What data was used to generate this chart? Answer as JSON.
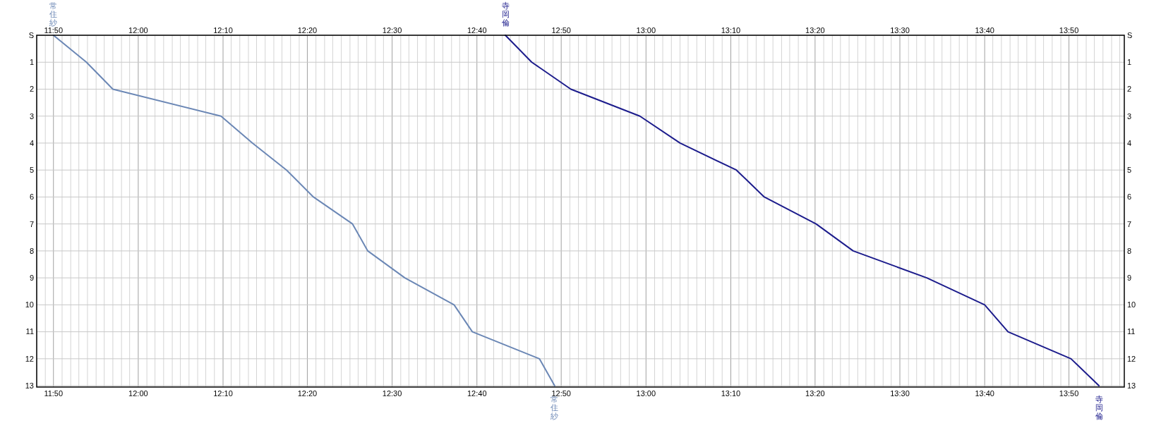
{
  "chart_data": {
    "type": "line",
    "xlim": [
      11.8,
      13.942
    ],
    "ylim": [
      13.05,
      0
    ],
    "y2lim": [
      13.05,
      0
    ],
    "x2lim": [
      11.8,
      13.942
    ],
    "grid": true,
    "marker": "none",
    "line_style": "solid",
    "xticks": [
      {
        "value": 11.8,
        "label": null
      },
      {
        "value": 11.817,
        "label": null
      },
      {
        "value": 11.833,
        "label": "11:50"
      },
      {
        "value": 11.85,
        "label": null
      },
      {
        "value": 11.867,
        "label": null
      },
      {
        "value": 11.883,
        "label": null
      },
      {
        "value": 11.9,
        "label": null
      },
      {
        "value": 11.917,
        "label": null
      },
      {
        "value": 11.933,
        "label": null
      },
      {
        "value": 11.95,
        "label": null
      },
      {
        "value": 11.967,
        "label": null
      },
      {
        "value": 11.983,
        "label": null
      },
      {
        "value": 12,
        "label": "12:00"
      },
      {
        "value": 12.017,
        "label": null
      },
      {
        "value": 12.033,
        "label": null
      },
      {
        "value": 12.05,
        "label": null
      },
      {
        "value": 12.067,
        "label": null
      },
      {
        "value": 12.083,
        "label": null
      },
      {
        "value": 12.1,
        "label": null
      },
      {
        "value": 12.117,
        "label": null
      },
      {
        "value": 12.133,
        "label": null
      },
      {
        "value": 12.15,
        "label": null
      },
      {
        "value": 12.167,
        "label": "12:10"
      },
      {
        "value": 12.183,
        "label": null
      },
      {
        "value": 12.2,
        "label": null
      },
      {
        "value": 12.217,
        "label": null
      },
      {
        "value": 12.233,
        "label": null
      },
      {
        "value": 12.25,
        "label": null
      },
      {
        "value": 12.267,
        "label": null
      },
      {
        "value": 12.283,
        "label": null
      },
      {
        "value": 12.3,
        "label": null
      },
      {
        "value": 12.317,
        "label": null
      },
      {
        "value": 12.333,
        "label": "12:20"
      },
      {
        "value": 12.35,
        "label": null
      },
      {
        "value": 12.367,
        "label": null
      },
      {
        "value": 12.383,
        "label": null
      },
      {
        "value": 12.4,
        "label": null
      },
      {
        "value": 12.417,
        "label": null
      },
      {
        "value": 12.433,
        "label": null
      },
      {
        "value": 12.45,
        "label": null
      },
      {
        "value": 12.467,
        "label": null
      },
      {
        "value": 12.483,
        "label": null
      },
      {
        "value": 12.5,
        "label": "12:30"
      },
      {
        "value": 12.517,
        "label": null
      },
      {
        "value": 12.533,
        "label": null
      },
      {
        "value": 12.55,
        "label": null
      },
      {
        "value": 12.567,
        "label": null
      },
      {
        "value": 12.583,
        "label": null
      },
      {
        "value": 12.6,
        "label": null
      },
      {
        "value": 12.617,
        "label": null
      },
      {
        "value": 12.633,
        "label": null
      },
      {
        "value": 12.65,
        "label": null
      },
      {
        "value": 12.667,
        "label": "12:40"
      },
      {
        "value": 12.683,
        "label": null
      },
      {
        "value": 12.7,
        "label": null
      },
      {
        "value": 12.717,
        "label": null
      },
      {
        "value": 12.733,
        "label": null
      },
      {
        "value": 12.75,
        "label": null
      },
      {
        "value": 12.767,
        "label": null
      },
      {
        "value": 12.783,
        "label": null
      },
      {
        "value": 12.8,
        "label": null
      },
      {
        "value": 12.817,
        "label": null
      },
      {
        "value": 12.833,
        "label": "12:50"
      },
      {
        "value": 12.85,
        "label": null
      },
      {
        "value": 12.867,
        "label": null
      },
      {
        "value": 12.883,
        "label": null
      },
      {
        "value": 12.9,
        "label": null
      },
      {
        "value": 12.917,
        "label": null
      },
      {
        "value": 12.933,
        "label": null
      },
      {
        "value": 12.95,
        "label": null
      },
      {
        "value": 12.967,
        "label": null
      },
      {
        "value": 12.983,
        "label": null
      },
      {
        "value": 13,
        "label": "13:00"
      },
      {
        "value": 13.017,
        "label": null
      },
      {
        "value": 13.033,
        "label": null
      },
      {
        "value": 13.05,
        "label": null
      },
      {
        "value": 13.067,
        "label": null
      },
      {
        "value": 13.083,
        "label": null
      },
      {
        "value": 13.1,
        "label": null
      },
      {
        "value": 13.117,
        "label": null
      },
      {
        "value": 13.133,
        "label": null
      },
      {
        "value": 13.15,
        "label": null
      },
      {
        "value": 13.167,
        "label": "13:10"
      },
      {
        "value": 13.183,
        "label": null
      },
      {
        "value": 13.2,
        "label": null
      },
      {
        "value": 13.217,
        "label": null
      },
      {
        "value": 13.233,
        "label": null
      },
      {
        "value": 13.25,
        "label": null
      },
      {
        "value": 13.267,
        "label": null
      },
      {
        "value": 13.283,
        "label": null
      },
      {
        "value": 13.3,
        "label": null
      },
      {
        "value": 13.317,
        "label": null
      },
      {
        "value": 13.333,
        "label": "13:20"
      },
      {
        "value": 13.35,
        "label": null
      },
      {
        "value": 13.367,
        "label": null
      },
      {
        "value": 13.383,
        "label": null
      },
      {
        "value": 13.4,
        "label": null
      },
      {
        "value": 13.417,
        "label": null
      },
      {
        "value": 13.433,
        "label": null
      },
      {
        "value": 13.45,
        "label": null
      },
      {
        "value": 13.467,
        "label": null
      },
      {
        "value": 13.483,
        "label": null
      },
      {
        "value": 13.5,
        "label": "13:30"
      },
      {
        "value": 13.517,
        "label": null
      },
      {
        "value": 13.533,
        "label": null
      },
      {
        "value": 13.55,
        "label": null
      },
      {
        "value": 13.567,
        "label": null
      },
      {
        "value": 13.583,
        "label": null
      },
      {
        "value": 13.6,
        "label": null
      },
      {
        "value": 13.617,
        "label": null
      },
      {
        "value": 13.633,
        "label": null
      },
      {
        "value": 13.65,
        "label": null
      },
      {
        "value": 13.667,
        "label": "13:40"
      },
      {
        "value": 13.683,
        "label": null
      },
      {
        "value": 13.7,
        "label": null
      },
      {
        "value": 13.717,
        "label": null
      },
      {
        "value": 13.733,
        "label": null
      },
      {
        "value": 13.75,
        "label": null
      },
      {
        "value": 13.767,
        "label": null
      },
      {
        "value": 13.783,
        "label": null
      },
      {
        "value": 13.8,
        "label": null
      },
      {
        "value": 13.817,
        "label": null
      },
      {
        "value": 13.833,
        "label": "13:50"
      },
      {
        "value": 13.85,
        "label": null
      },
      {
        "value": 13.867,
        "label": null
      },
      {
        "value": 13.883,
        "label": null
      },
      {
        "value": 13.9,
        "label": null
      },
      {
        "value": 13.917,
        "label": null
      },
      {
        "value": 13.933,
        "label": null
      }
    ],
    "x2ticks": [
      {
        "value": 11.833,
        "label": "11:50"
      },
      {
        "value": 12,
        "label": "12:00"
      },
      {
        "value": 12.167,
        "label": "12:10"
      },
      {
        "value": 12.333,
        "label": "12:20"
      },
      {
        "value": 12.5,
        "label": "12:30"
      },
      {
        "value": 12.667,
        "label": "12:40"
      },
      {
        "value": 12.833,
        "label": "12:50"
      },
      {
        "value": 13,
        "label": "13:00"
      },
      {
        "value": 13.167,
        "label": "13:10"
      },
      {
        "value": 13.333,
        "label": "13:20"
      },
      {
        "value": 13.5,
        "label": "13:30"
      },
      {
        "value": 13.667,
        "label": "13:40"
      },
      {
        "value": 13.833,
        "label": "13:50"
      }
    ],
    "yticks": [
      {
        "value": 0,
        "label": "S"
      },
      1,
      2,
      3,
      4,
      5,
      6,
      7,
      8,
      9,
      10,
      11,
      12,
      13
    ],
    "y2ticks": [
      {
        "value": 0,
        "label": "S"
      },
      1,
      2,
      3,
      4,
      5,
      6,
      7,
      8,
      9,
      10,
      11,
      12,
      13
    ],
    "series": [
      {
        "name": "常住紗",
        "color": "#6b87b5",
        "x": [
          11.833,
          11.898,
          11.95,
          12.163,
          12.225,
          12.292,
          12.345,
          12.422,
          12.452,
          12.525,
          12.622,
          12.658,
          12.79,
          12.82
        ],
        "values": [
          0,
          1,
          2,
          3,
          4,
          5,
          6,
          7,
          8,
          9,
          10,
          11,
          12,
          13
        ]
      },
      {
        "name": "寺岡倫",
        "color": "#1c1c8c",
        "x": [
          12.723,
          12.775,
          12.852,
          12.988,
          13.067,
          13.178,
          13.233,
          13.335,
          13.408,
          13.553,
          13.667,
          13.713,
          13.837,
          13.892
        ],
        "values": [
          0,
          1,
          2,
          3,
          4,
          5,
          6,
          7,
          8,
          9,
          10,
          11,
          12,
          13
        ]
      }
    ]
  }
}
